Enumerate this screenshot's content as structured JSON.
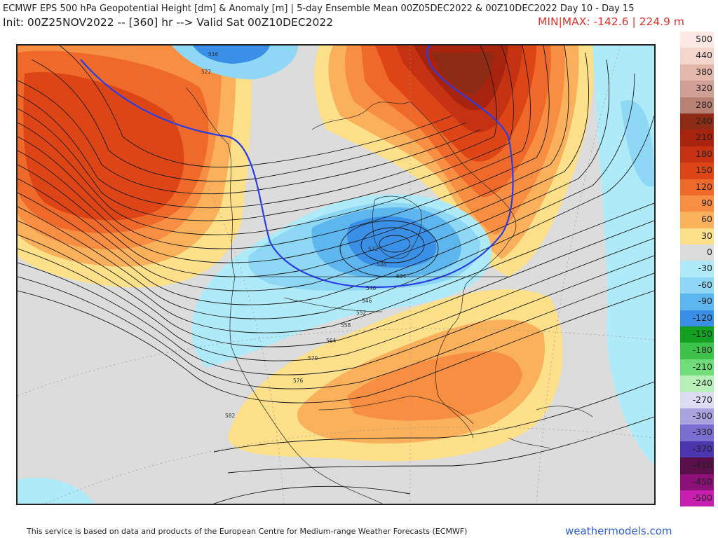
{
  "header": {
    "line1": "ECMWF EPS 500 hPa Geopotential Height [dm] & Anomaly [m] | 5-day Ensemble Mean 00Z05DEC2022 & 00Z10DEC2022   Day 10 - Day 15",
    "line2": "Init: 00Z25NOV2022 -- [360] hr --> Valid Sat 00Z10DEC2022",
    "minmax": "MIN|MAX: -142.6 | 224.9 m"
  },
  "contour_labels": [
    "516",
    "522",
    "522",
    "528",
    "534",
    "540",
    "546",
    "552",
    "558",
    "564",
    "570",
    "576",
    "582"
  ],
  "colorbar": {
    "labels": [
      "500",
      "440",
      "380",
      "320",
      "280",
      "240",
      "210",
      "180",
      "150",
      "120",
      "90",
      "60",
      "30",
      "0",
      "-30",
      "-60",
      "-90",
      "-120",
      "-150",
      "-180",
      "-210",
      "-240",
      "-270",
      "-300",
      "-330",
      "-370",
      "-410",
      "-450",
      "-500"
    ],
    "colors": [
      "#fde9e4",
      "#f4d6cc",
      "#e3b8ab",
      "#cfa093",
      "#b98173",
      "#8e2b14",
      "#a7230e",
      "#c43212",
      "#de4516",
      "#ef6a2a",
      "#f78e41",
      "#fbb05c",
      "#fde08a",
      "#dcdcdc",
      "#aeeaf7",
      "#8fd8f5",
      "#5db6ee",
      "#3990e6",
      "#12a020",
      "#3dc24a",
      "#70dc7a",
      "#b6f0b8",
      "#dcdcf5",
      "#a9a3e0",
      "#7a6ed0",
      "#4b36b0",
      "#5a0e4a",
      "#8d1078",
      "#c81fb0"
    ]
  },
  "footer": {
    "credit": "This service is based on data and products of the European Centre for Medium-range Weather Forecasts (ECMWF)",
    "brand": "weathermodels.com"
  }
}
